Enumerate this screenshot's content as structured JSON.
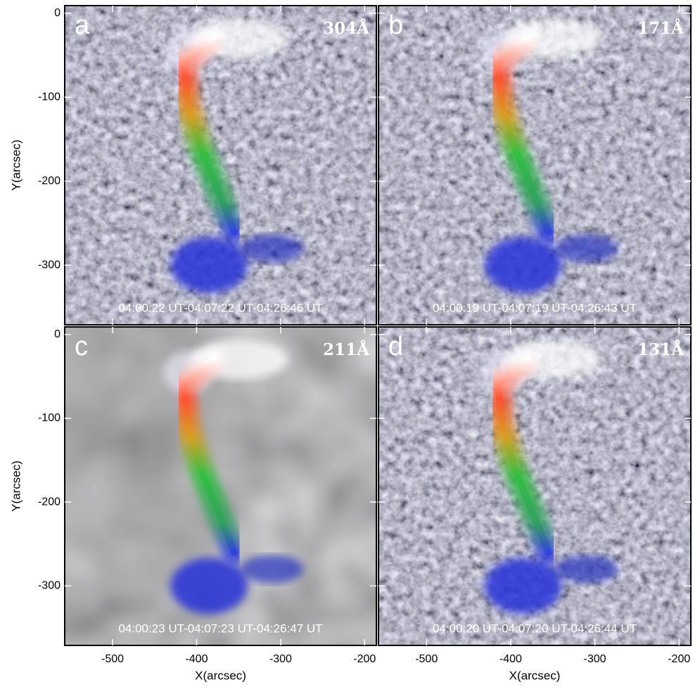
{
  "chart_data": [
    {
      "type": "image",
      "panel_label": "a",
      "wavelength": "304Å",
      "time_range": "04:00:22 UT-04:07:22 UT-04:26:46 UT",
      "xlim": [
        -557,
        -186
      ],
      "ylim": [
        -371,
        9
      ],
      "xticks": [
        -500,
        -400,
        -300,
        -200
      ],
      "yticks": [
        -300,
        -200,
        -100,
        0
      ],
      "ylabel": "Y(arcsec)"
    },
    {
      "type": "image",
      "panel_label": "b",
      "wavelength": "171Å",
      "time_range": "04:00:19 UT-04:07:19 UT-04:26:43 UT",
      "xlim": [
        -557,
        -186
      ],
      "ylim": [
        -371,
        9
      ],
      "xticks": [
        -500,
        -400,
        -300,
        -200
      ],
      "yticks": [
        -300,
        -200,
        -100,
        0
      ]
    },
    {
      "type": "image",
      "panel_label": "c",
      "wavelength": "211Å",
      "time_range": "04:00:23 UT-04:07:23 UT-04:26:47 UT",
      "xlim": [
        -557,
        -186
      ],
      "ylim": [
        -371,
        9
      ],
      "xticks": [
        -500,
        -400,
        -300,
        -200
      ],
      "yticks": [
        -300,
        -200,
        -100,
        0
      ],
      "xlabel": "X(arcsec)",
      "ylabel": "Y(arcsec)"
    },
    {
      "type": "image",
      "panel_label": "d",
      "wavelength": "131Å",
      "time_range": "04:00:20 UT-04:07:20 UT-04:26:44 UT",
      "xlim": [
        -557,
        -186
      ],
      "ylim": [
        -371,
        9
      ],
      "xticks": [
        -500,
        -400,
        -300,
        -200
      ],
      "yticks": [
        -300,
        -200,
        -100,
        0
      ],
      "xlabel": "X(arcsec)"
    }
  ]
}
